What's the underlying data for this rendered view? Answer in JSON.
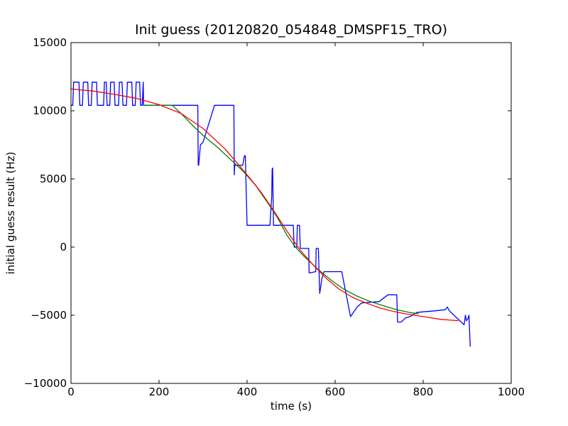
{
  "chart_data": {
    "type": "line",
    "title": "Init guess (20120820_054848_DMSPF15_TRO)",
    "xlabel": "time (s)",
    "ylabel": "initial guess result (Hz)",
    "xlim": [
      0,
      1000
    ],
    "ylim": [
      -10000,
      15000
    ],
    "x_ticks": [
      0,
      200,
      400,
      600,
      800,
      1000
    ],
    "y_ticks": [
      -10000,
      -5000,
      0,
      5000,
      10000,
      15000
    ],
    "x_tick_labels": [
      "0",
      "200",
      "400",
      "600",
      "800",
      "1000"
    ],
    "y_tick_labels": [
      "−10000",
      "−5000",
      "0",
      "5000",
      "10000",
      "15000"
    ],
    "grid": false,
    "legend": "none",
    "series": [
      {
        "color": "#0000ff",
        "points": [
          [
            0,
            10400
          ],
          [
            4,
            10400
          ],
          [
            6,
            12100
          ],
          [
            18,
            12100
          ],
          [
            20,
            10400
          ],
          [
            26,
            10400
          ],
          [
            28,
            12100
          ],
          [
            38,
            12100
          ],
          [
            40,
            10400
          ],
          [
            46,
            10400
          ],
          [
            48,
            12100
          ],
          [
            58,
            12100
          ],
          [
            60,
            10400
          ],
          [
            74,
            10400
          ],
          [
            76,
            12100
          ],
          [
            80,
            12100
          ],
          [
            82,
            10400
          ],
          [
            88,
            10400
          ],
          [
            90,
            12100
          ],
          [
            98,
            12100
          ],
          [
            100,
            10400
          ],
          [
            108,
            10400
          ],
          [
            110,
            12100
          ],
          [
            116,
            12100
          ],
          [
            118,
            10400
          ],
          [
            126,
            10400
          ],
          [
            128,
            12100
          ],
          [
            138,
            12100
          ],
          [
            140,
            10400
          ],
          [
            146,
            10400
          ],
          [
            148,
            12100
          ],
          [
            156,
            12100
          ],
          [
            158,
            10400
          ],
          [
            162,
            10400
          ],
          [
            164,
            12100
          ],
          [
            165,
            10400
          ],
          [
            200,
            10400
          ],
          [
            240,
            10400
          ],
          [
            288,
            10400
          ],
          [
            289,
            6000
          ],
          [
            290,
            6000
          ],
          [
            294,
            7500
          ],
          [
            300,
            7700
          ],
          [
            326,
            10400
          ],
          [
            370,
            10400
          ],
          [
            371,
            5300
          ],
          [
            372,
            6000
          ],
          [
            390,
            6000
          ],
          [
            394,
            6700
          ],
          [
            396,
            6700
          ],
          [
            400,
            1600
          ],
          [
            452,
            1600
          ],
          [
            456,
            3700
          ],
          [
            457,
            5700
          ],
          [
            458,
            5800
          ],
          [
            460,
            1600
          ],
          [
            505,
            1600
          ],
          [
            507,
            0
          ],
          [
            513,
            0
          ],
          [
            514,
            1600
          ],
          [
            519,
            1600
          ],
          [
            521,
            -100
          ],
          [
            540,
            -100
          ],
          [
            541,
            -1900
          ],
          [
            556,
            -1800
          ],
          [
            557,
            -100
          ],
          [
            562,
            -100
          ],
          [
            565,
            -3400
          ],
          [
            570,
            -2300
          ],
          [
            575,
            -1800
          ],
          [
            585,
            -1800
          ],
          [
            586,
            -1800
          ],
          [
            615,
            -1800
          ],
          [
            635,
            -5100
          ],
          [
            650,
            -4400
          ],
          [
            660,
            -4100
          ],
          [
            700,
            -4000
          ],
          [
            720,
            -3500
          ],
          [
            740,
            -3500
          ],
          [
            742,
            -5500
          ],
          [
            750,
            -5500
          ],
          [
            760,
            -5200
          ],
          [
            770,
            -5100
          ],
          [
            785,
            -4800
          ],
          [
            800,
            -4750
          ],
          [
            820,
            -4700
          ],
          [
            850,
            -4600
          ],
          [
            855,
            -4400
          ],
          [
            860,
            -4700
          ],
          [
            893,
            -5700
          ],
          [
            896,
            -5000
          ],
          [
            898,
            -5400
          ],
          [
            901,
            -5300
          ],
          [
            904,
            -5000
          ],
          [
            907,
            -7300
          ]
        ]
      },
      {
        "color": "#007f00",
        "points": [
          [
            165,
            10400
          ],
          [
            200,
            10400
          ],
          [
            230,
            10400
          ],
          [
            250,
            9800
          ],
          [
            280,
            8800
          ],
          [
            300,
            8200
          ],
          [
            330,
            7400
          ],
          [
            360,
            6500
          ],
          [
            390,
            5600
          ],
          [
            420,
            4500
          ],
          [
            450,
            3100
          ],
          [
            470,
            2100
          ],
          [
            490,
            900
          ],
          [
            510,
            0
          ],
          [
            530,
            -700
          ],
          [
            560,
            -1600
          ],
          [
            590,
            -2400
          ],
          [
            620,
            -3100
          ],
          [
            650,
            -3600
          ],
          [
            680,
            -4000
          ],
          [
            710,
            -4300
          ],
          [
            740,
            -4600
          ],
          [
            770,
            -4800
          ],
          [
            790,
            -4900
          ]
        ]
      },
      {
        "color": "#ff0000",
        "points": [
          [
            0,
            11600
          ],
          [
            50,
            11450
          ],
          [
            100,
            11200
          ],
          [
            150,
            10900
          ],
          [
            200,
            10450
          ],
          [
            250,
            9800
          ],
          [
            300,
            8700
          ],
          [
            350,
            7200
          ],
          [
            400,
            5300
          ],
          [
            430,
            4100
          ],
          [
            460,
            2700
          ],
          [
            490,
            1200
          ],
          [
            520,
            -200
          ],
          [
            550,
            -1300
          ],
          [
            580,
            -2300
          ],
          [
            610,
            -3100
          ],
          [
            640,
            -3700
          ],
          [
            670,
            -4100
          ],
          [
            700,
            -4450
          ],
          [
            730,
            -4700
          ],
          [
            760,
            -4900
          ],
          [
            800,
            -5100
          ],
          [
            840,
            -5300
          ],
          [
            880,
            -5400
          ]
        ]
      }
    ]
  }
}
